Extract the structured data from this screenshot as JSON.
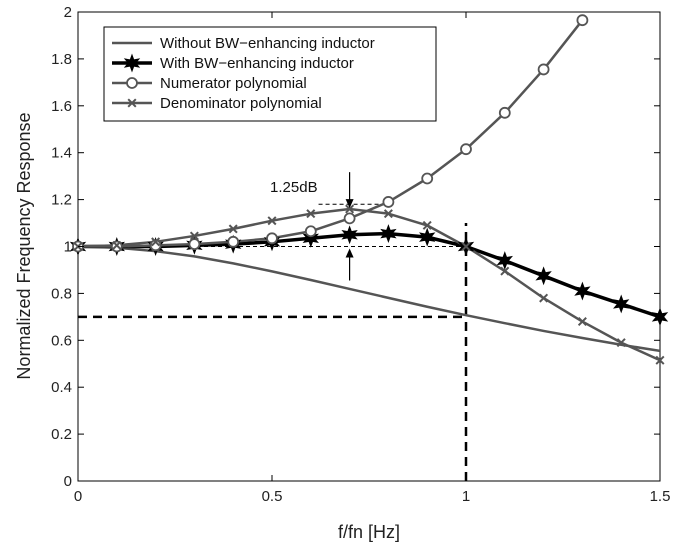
{
  "chart_data": {
    "type": "line",
    "xlabel": "f/fn [Hz]",
    "ylabel": "Normalized Frequency Response",
    "xlim": [
      0,
      1.5
    ],
    "ylim": [
      0,
      2
    ],
    "xticks": [
      0,
      0.5,
      1,
      1.5
    ],
    "xtick_labels": [
      "0",
      "0.5",
      "1",
      "1.5"
    ],
    "yticks": [
      0,
      0.2,
      0.4,
      0.6,
      0.8,
      1,
      1.2,
      1.4,
      1.6,
      1.8,
      2
    ],
    "ytick_labels": [
      "0",
      "0.2",
      "0.4",
      "0.6",
      "0.8",
      "1",
      "1.2",
      "1.4",
      "1.6",
      "1.8",
      "2"
    ],
    "grid": false,
    "legend_position": "top-left",
    "series": [
      {
        "name": "Without BW−enhancing inductor",
        "marker": "none",
        "color": "#555555",
        "x": [
          0,
          0.1,
          0.2,
          0.3,
          0.4,
          0.5,
          0.6,
          0.7,
          0.8,
          0.9,
          1.0,
          1.1,
          1.2,
          1.3,
          1.4,
          1.5
        ],
        "y": [
          1.0,
          0.995,
          0.98,
          0.958,
          0.928,
          0.894,
          0.857,
          0.819,
          0.781,
          0.743,
          0.707,
          0.673,
          0.64,
          0.61,
          0.581,
          0.555
        ]
      },
      {
        "name": "With BW−enhancing inductor",
        "marker": "star",
        "color": "#000000",
        "x": [
          0,
          0.1,
          0.2,
          0.3,
          0.4,
          0.5,
          0.6,
          0.7,
          0.8,
          0.9,
          1.0,
          1.1,
          1.2,
          1.3,
          1.4,
          1.5
        ],
        "y": [
          1.0,
          1.0,
          1.0,
          1.005,
          1.01,
          1.02,
          1.035,
          1.05,
          1.055,
          1.04,
          1.0,
          0.94,
          0.875,
          0.81,
          0.755,
          0.7
        ]
      },
      {
        "name": "Numerator polynomial",
        "marker": "circle",
        "color": "#555555",
        "x": [
          0,
          0.1,
          0.2,
          0.3,
          0.4,
          0.5,
          0.6,
          0.7,
          0.8,
          0.9,
          1.0,
          1.1,
          1.2,
          1.3
        ],
        "y": [
          1.0,
          1.0,
          1.005,
          1.01,
          1.02,
          1.035,
          1.065,
          1.12,
          1.19,
          1.29,
          1.415,
          1.57,
          1.755,
          1.965
        ]
      },
      {
        "name": "Denominator polynomial",
        "marker": "x",
        "color": "#555555",
        "x": [
          0,
          0.1,
          0.2,
          0.3,
          0.4,
          0.5,
          0.6,
          0.7,
          0.8,
          0.9,
          1.0,
          1.1,
          1.2,
          1.3,
          1.4,
          1.5
        ],
        "y": [
          1.0,
          1.005,
          1.02,
          1.045,
          1.075,
          1.11,
          1.14,
          1.16,
          1.14,
          1.09,
          1.0,
          0.895,
          0.78,
          0.68,
          0.59,
          0.515
        ]
      }
    ],
    "annotations": [
      {
        "text": "1.25dB",
        "x": 0.7,
        "y_low": 1.0,
        "y_high": 1.155
      }
    ],
    "reference_lines": [
      {
        "kind": "horizontal",
        "y": 1.0,
        "x_from": 0,
        "x_to": 1.0,
        "style": "dashed-thin"
      },
      {
        "kind": "horizontal",
        "y": 1.18,
        "x_from": 0.62,
        "x_to": 0.78,
        "style": "dashed-thin"
      },
      {
        "kind": "horizontal",
        "y": 0.7,
        "x_from": 0,
        "x_to": 1.0,
        "style": "dashed-thick"
      },
      {
        "kind": "vertical",
        "x": 1.0,
        "y_from": 0,
        "y_to": 1.1,
        "style": "dashed-thick"
      }
    ]
  }
}
